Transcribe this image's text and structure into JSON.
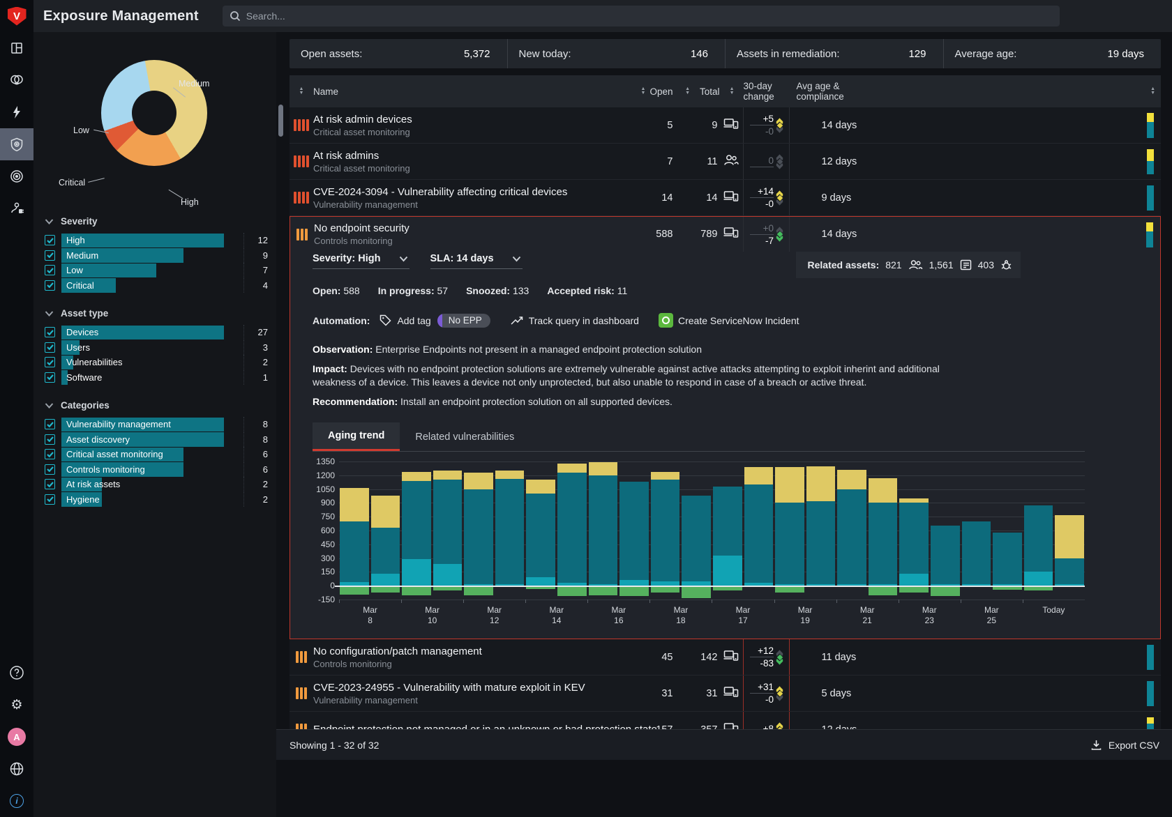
{
  "app": {
    "title": "Exposure Management",
    "search_placeholder": "Search..."
  },
  "rail": {
    "top": [
      "overview-grid",
      "threat-mask",
      "bolt",
      "exposure-shield",
      "bullseye",
      "integrations-plug"
    ],
    "active": "exposure-shield",
    "bottom": [
      "help",
      "settings-gear",
      "avatar",
      "globe",
      "info"
    ],
    "avatar_letter": "A"
  },
  "sidebar": {
    "donut": {
      "start_deg": -10,
      "segments": [
        {
          "label": "Medium",
          "color": "#e8d283",
          "deg": 160
        },
        {
          "label": "High",
          "color": "#f2a050",
          "deg": 75
        },
        {
          "label": "Critical",
          "color": "#e05a35",
          "deg": 25
        },
        {
          "label": "Low",
          "color": "#a7d7ef",
          "deg": 100
        }
      ]
    },
    "groups": [
      {
        "title": "Severity",
        "items": [
          {
            "label": "High",
            "count": 12
          },
          {
            "label": "Medium",
            "count": 9
          },
          {
            "label": "Low",
            "count": 7
          },
          {
            "label": "Critical",
            "count": 4
          }
        ]
      },
      {
        "title": "Asset type",
        "items": [
          {
            "label": "Devices",
            "count": 27
          },
          {
            "label": "Users",
            "count": 3
          },
          {
            "label": "Vulnerabilities",
            "count": 2
          },
          {
            "label": "Software",
            "count": 1
          }
        ]
      },
      {
        "title": "Categories",
        "items": [
          {
            "label": "Vulnerability management",
            "count": 8
          },
          {
            "label": "Asset discovery",
            "count": 8
          },
          {
            "label": "Critical asset monitoring",
            "count": 6
          },
          {
            "label": "Controls monitoring",
            "count": 6
          },
          {
            "label": "At risk assets",
            "count": 2
          },
          {
            "label": "Hygiene",
            "count": 2
          }
        ]
      }
    ]
  },
  "stats": [
    {
      "label": "Open assets:",
      "value": "5,372"
    },
    {
      "label": "New today:",
      "value": "146"
    },
    {
      "label": "Assets in remediation:",
      "value": "129"
    },
    {
      "label": "Average age:",
      "value": "19 days"
    }
  ],
  "table": {
    "columns": {
      "name": "Name",
      "open": "Open",
      "total": "Total",
      "change": "30-day change",
      "avg": "Avg age & compliance"
    },
    "rows": [
      {
        "name": "At risk admin devices",
        "category": "Critical asset monitoring",
        "severity": "critical",
        "open": "5",
        "total": "9",
        "type": "devices",
        "change_up": "+5",
        "change_down": "-0",
        "up_dim": false,
        "down_dim": true,
        "trend": "up-yellow",
        "age": "14 days",
        "bar_yellow": 35
      },
      {
        "name": "At risk admins",
        "category": "Critical asset monitoring",
        "severity": "critical",
        "open": "7",
        "total": "11",
        "type": "users",
        "change_up": "0",
        "change_down": "",
        "up_dim": true,
        "down_dim": true,
        "trend": "none",
        "age": "12 days",
        "bar_yellow": 48
      },
      {
        "name": "CVE-2024-3094 - Vulnerability affecting critical devices",
        "category": "Vulnerability management",
        "severity": "critical",
        "open": "14",
        "total": "14",
        "type": "devices",
        "change_up": "+14",
        "change_down": "-0",
        "up_dim": false,
        "down_dim": false,
        "trend": "up-yellow",
        "age": "9 days",
        "bar_yellow": 0
      },
      {
        "name": "No endpoint security",
        "category": "Controls monitoring",
        "severity": "high",
        "open": "588",
        "total": "789",
        "type": "devices",
        "change_up": "+0",
        "change_down": "-7",
        "up_dim": true,
        "down_dim": false,
        "trend": "down-green",
        "age": "14 days",
        "bar_yellow": 35,
        "expanded": true
      },
      {
        "name": "No configuration/patch management",
        "category": "Controls monitoring",
        "severity": "high",
        "open": "45",
        "total": "142",
        "type": "devices",
        "change_up": "+12",
        "change_down": "-83",
        "up_dim": false,
        "down_dim": false,
        "trend": "down-green",
        "age": "11 days",
        "bar_yellow": 0,
        "red_change": true
      },
      {
        "name": "CVE-2023-24955 - Vulnerability with mature exploit in KEV",
        "category": "Vulnerability management",
        "severity": "high",
        "open": "31",
        "total": "31",
        "type": "devices",
        "change_up": "+31",
        "change_down": "-0",
        "up_dim": false,
        "down_dim": false,
        "trend": "up-yellow",
        "age": "5 days",
        "bar_yellow": 0,
        "red_change": true
      },
      {
        "name": "Endpoint protection not managed or in an unknown or bad protection state",
        "category": "",
        "severity": "high",
        "open": "157",
        "total": "357",
        "type": "devices",
        "change_up": "+8",
        "change_down": "",
        "up_dim": false,
        "down_dim": true,
        "trend": "up-yellow",
        "age": "12 days",
        "bar_yellow": 25,
        "red_change": true
      }
    ]
  },
  "expanded": {
    "severity_select": "Severity: High",
    "sla_select": "SLA: 14 days",
    "related": {
      "label": "Related assets:",
      "users": "821",
      "devices": "1,561",
      "vulns": "403"
    },
    "counts": [
      {
        "label": "Open:",
        "value": "588"
      },
      {
        "label": "In progress:",
        "value": "57"
      },
      {
        "label": "Snoozed:",
        "value": "133"
      },
      {
        "label": "Accepted risk:",
        "value": "11"
      }
    ],
    "automation": {
      "label": "Automation:",
      "add_tag": "Add tag",
      "tag_pill": "No EPP",
      "track": "Track query in dashboard",
      "servicenow": "Create ServiceNow Incident"
    },
    "observation_label": "Observation:",
    "observation": "Enterprise Endpoints not present in a managed endpoint protection solution",
    "impact_label": "Impact:",
    "impact": "Devices with no endpoint protection solutions are extremely vulnerable against active attacks attempting to exploit inherint and additional weakness of a device. This leaves a device not only unprotected, but also unable to respond in case of a breach or active threat.",
    "recommendation_label": "Recommendation:",
    "recommendation": "Install an endpoint protection solution on all supported devices.",
    "tabs": [
      {
        "label": "Aging trend",
        "active": true
      },
      {
        "label": "Related vulnerabilities",
        "active": false
      }
    ]
  },
  "chart_data": {
    "type": "bar",
    "stacked": true,
    "title": "Aging trend",
    "ylim": [
      -150,
      1350
    ],
    "yticks": [
      1350,
      1200,
      1050,
      900,
      750,
      600,
      450,
      300,
      150,
      0,
      -150
    ],
    "categories": [
      "Mar 8",
      "Mar 10",
      "Mar 12",
      "Mar 14",
      "Mar 16",
      "Mar 18",
      "Mar 17",
      "Mar 19",
      "Mar 21",
      "Mar 23",
      "Mar 25",
      "Today"
    ],
    "bars_per_category": 2,
    "legend": {
      "in_progress": "#11a3b4",
      "open": "#0d6b7c",
      "aged": "#dfc964",
      "new_below_zero": "#55b15e"
    },
    "bars": [
      {
        "in_progress": 40,
        "open": 660,
        "aged": 360,
        "new": 80
      },
      {
        "in_progress": 130,
        "open": 500,
        "aged": 350,
        "new": 60
      },
      {
        "in_progress": 290,
        "open": 850,
        "aged": 100,
        "new": 90
      },
      {
        "in_progress": 240,
        "open": 910,
        "aged": 100,
        "new": 40
      },
      {
        "in_progress": 20,
        "open": 1030,
        "aged": 180,
        "new": 90
      },
      {
        "in_progress": 20,
        "open": 1140,
        "aged": 90,
        "new": 0
      },
      {
        "in_progress": 90,
        "open": 910,
        "aged": 150,
        "new": 20
      },
      {
        "in_progress": 30,
        "open": 1200,
        "aged": 100,
        "new": 100
      },
      {
        "in_progress": 20,
        "open": 1180,
        "aged": 140,
        "new": 90
      },
      {
        "in_progress": 60,
        "open": 1070,
        "aged": 0,
        "new": 100
      },
      {
        "in_progress": 50,
        "open": 1100,
        "aged": 90,
        "new": 60
      },
      {
        "in_progress": 50,
        "open": 930,
        "aged": 0,
        "new": 120
      },
      {
        "in_progress": 330,
        "open": 750,
        "aged": 0,
        "new": 40
      },
      {
        "in_progress": 30,
        "open": 1070,
        "aged": 190,
        "new": 0
      },
      {
        "in_progress": 20,
        "open": 880,
        "aged": 390,
        "new": 60
      },
      {
        "in_progress": 20,
        "open": 900,
        "aged": 380,
        "new": 0
      },
      {
        "in_progress": 20,
        "open": 1030,
        "aged": 210,
        "new": 0
      },
      {
        "in_progress": 20,
        "open": 880,
        "aged": 270,
        "new": 90
      },
      {
        "in_progress": 130,
        "open": 770,
        "aged": 50,
        "new": 60
      },
      {
        "in_progress": 20,
        "open": 630,
        "aged": 0,
        "new": 100
      },
      {
        "in_progress": 15,
        "open": 685,
        "aged": 0,
        "new": 0
      },
      {
        "in_progress": 20,
        "open": 560,
        "aged": 0,
        "new": 30
      },
      {
        "in_progress": 150,
        "open": 720,
        "aged": 0,
        "new": 40
      },
      {
        "in_progress": 20,
        "open": 280,
        "aged": 470,
        "new": 0
      }
    ]
  },
  "footer": {
    "showing": "Showing 1 - 32 of 32",
    "export": "Export CSV"
  }
}
